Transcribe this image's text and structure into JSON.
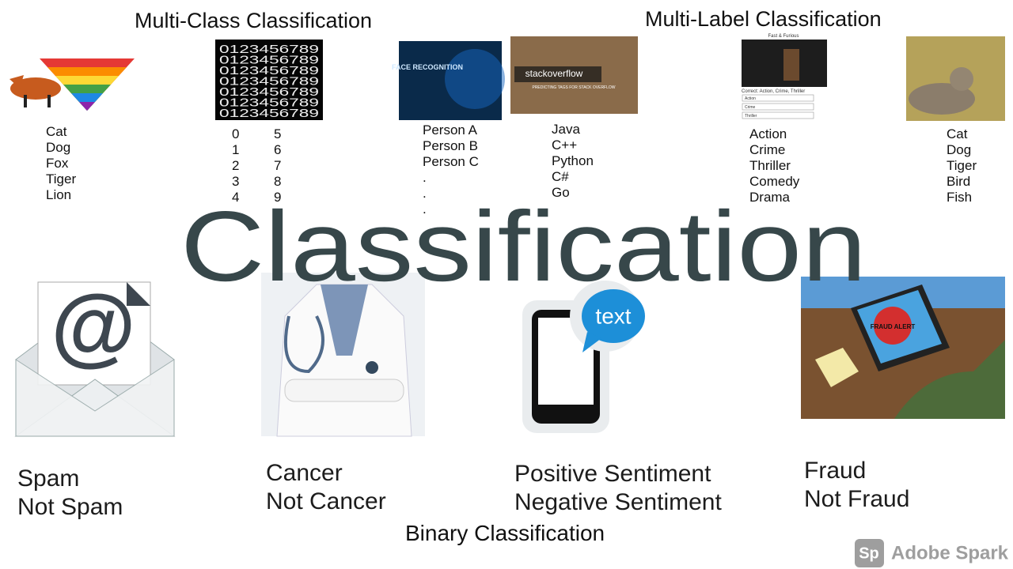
{
  "header": {
    "multi_class_title": "Multi-Class Classification",
    "multi_label_title": "Multi-Label Classification"
  },
  "main_title": "Classification",
  "footer_title": "Binary Classification",
  "lists": {
    "animals": [
      "Cat",
      "Dog",
      "Fox",
      "Tiger",
      "Lion"
    ],
    "digits_left": [
      "0",
      "1",
      "2",
      "3",
      "4"
    ],
    "digits_right": [
      "5",
      "6",
      "7",
      "8",
      "9"
    ],
    "persons": [
      "Person A",
      "Person B",
      "Person C",
      ".",
      ".",
      "."
    ],
    "tags": [
      "Java",
      "C++",
      "Python",
      "C#",
      "Go"
    ],
    "genres": [
      "Action",
      "Crime",
      "Thriller",
      "Comedy",
      "Drama"
    ],
    "animals_multi": [
      "Cat",
      "Dog",
      "Tiger",
      "Bird",
      "Fish"
    ]
  },
  "binary": [
    {
      "labels": [
        "Spam",
        "Not Spam"
      ]
    },
    {
      "labels": [
        "Cancer",
        "Not Cancer"
      ]
    },
    {
      "labels": [
        "Positive Sentiment",
        "Negative Sentiment"
      ]
    },
    {
      "labels": [
        "Fraud",
        "Not Fraud"
      ]
    }
  ],
  "image_texts": {
    "digit_row": "0123456789",
    "face": "FACE RECOGNITION",
    "stack": "stackoverflow",
    "stack_sub": "PREDICTING TAGS FOR STACK OVERFLOW",
    "movie": "Fast & Furious",
    "movie_correct": "Correct: Action, Crime, Thriller",
    "movie_options": [
      "Action",
      "Crime",
      "Thriller"
    ],
    "bubble": "text",
    "fraud": "FRAUD ALERT"
  },
  "brand": {
    "logo": "Sp",
    "name": "Adobe Spark"
  }
}
